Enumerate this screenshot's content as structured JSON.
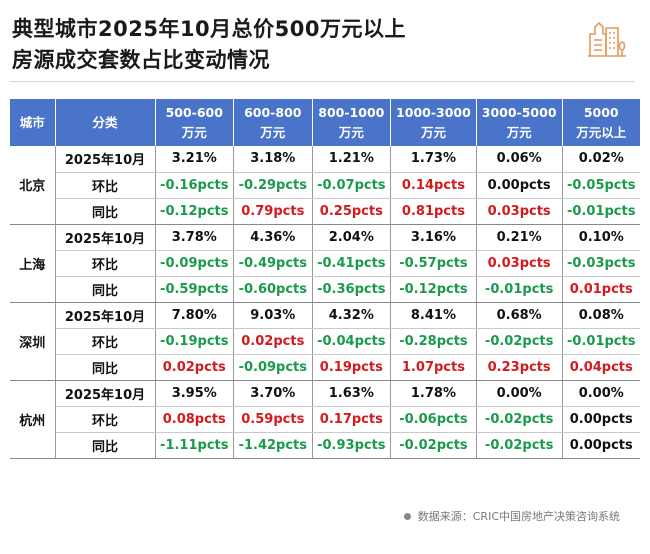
{
  "title": {
    "line1": "典型城市2025年10月总价500万元以上",
    "line2": "房源成交套数占比变动情况"
  },
  "colors": {
    "header": "#4a74c9",
    "positive": "#d21a1f",
    "negative": "#1a9a4a",
    "logo": "#e39a5a"
  },
  "table": {
    "headers": [
      [
        "城市"
      ],
      [
        "分类"
      ],
      [
        "500-600",
        "万元"
      ],
      [
        "600-800",
        "万元"
      ],
      [
        "800-1000",
        "万元"
      ],
      [
        "1000-3000",
        "万元"
      ],
      [
        "3000-5000",
        "万元"
      ],
      [
        "5000",
        "万元以上"
      ]
    ],
    "cities": [
      {
        "name": "北京",
        "rows": [
          {
            "label": "2025年10月",
            "values": [
              "3.21%",
              "3.18%",
              "1.21%",
              "1.73%",
              "0.06%",
              "0.02%"
            ]
          },
          {
            "label": "环比",
            "values": [
              "-0.16pcts",
              "-0.29pcts",
              "-0.07pcts",
              "0.14pcts",
              "0.00pcts",
              "-0.05pcts"
            ]
          },
          {
            "label": "同比",
            "values": [
              "-0.12pcts",
              "0.79pcts",
              "0.25pcts",
              "0.81pcts",
              "0.03pcts",
              "-0.01pcts"
            ]
          }
        ]
      },
      {
        "name": "上海",
        "rows": [
          {
            "label": "2025年10月",
            "values": [
              "3.78%",
              "4.36%",
              "2.04%",
              "3.16%",
              "0.21%",
              "0.10%"
            ]
          },
          {
            "label": "环比",
            "values": [
              "-0.09pcts",
              "-0.49pcts",
              "-0.41pcts",
              "-0.57pcts",
              "0.03pcts",
              "-0.03pcts"
            ]
          },
          {
            "label": "同比",
            "values": [
              "-0.59pcts",
              "-0.60pcts",
              "-0.36pcts",
              "-0.12pcts",
              "-0.01pcts",
              "0.01pcts"
            ]
          }
        ]
      },
      {
        "name": "深圳",
        "rows": [
          {
            "label": "2025年10月",
            "values": [
              "7.80%",
              "9.03%",
              "4.32%",
              "8.41%",
              "0.68%",
              "0.08%"
            ]
          },
          {
            "label": "环比",
            "values": [
              "-0.19pcts",
              "0.02pcts",
              "-0.04pcts",
              "-0.28pcts",
              "-0.02pcts",
              "-0.01pcts"
            ]
          },
          {
            "label": "同比",
            "values": [
              "0.02pcts",
              "-0.09pcts",
              "0.19pcts",
              "1.07pcts",
              "0.23pcts",
              "0.04pcts"
            ]
          }
        ]
      },
      {
        "name": "杭州",
        "rows": [
          {
            "label": "2025年10月",
            "values": [
              "3.95%",
              "3.70%",
              "1.63%",
              "1.78%",
              "0.00%",
              "0.00%"
            ]
          },
          {
            "label": "环比",
            "values": [
              "0.08pcts",
              "0.59pcts",
              "0.17pcts",
              "-0.06pcts",
              "-0.02pcts",
              "0.00pcts"
            ]
          },
          {
            "label": "同比",
            "values": [
              "-1.11pcts",
              "-1.42pcts",
              "-0.93pcts",
              "-0.02pcts",
              "-0.02pcts",
              "0.00pcts"
            ]
          }
        ]
      }
    ]
  },
  "footer": {
    "source": "数据来源：CRIC中国房地产决策咨询系统"
  }
}
